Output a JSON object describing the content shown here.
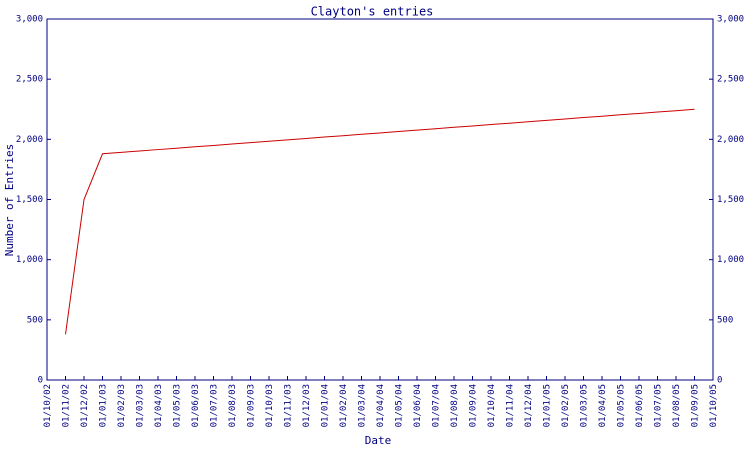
{
  "chart_data": {
    "type": "line",
    "title": "Clayton's entries",
    "x_label": "Date",
    "y_label": "Number of Entries",
    "categories": [
      "01/10/02",
      "01/11/02",
      "01/12/02",
      "01/01/03",
      "01/02/03",
      "01/03/03",
      "01/04/03",
      "01/05/03",
      "01/06/03",
      "01/07/03",
      "01/08/03",
      "01/09/03",
      "01/10/03",
      "01/11/03",
      "01/12/03",
      "01/01/04",
      "01/02/04",
      "01/03/04",
      "01/04/04",
      "01/05/04",
      "01/06/04",
      "01/07/04",
      "01/08/04",
      "01/09/04",
      "01/10/04",
      "01/11/04",
      "01/12/04",
      "01/01/05",
      "01/02/05",
      "01/03/05",
      "01/04/05",
      "01/05/05",
      "01/06/05",
      "01/07/05",
      "01/08/05",
      "01/09/05",
      "01/10/05"
    ],
    "series": [
      {
        "name": "Clayton's entries",
        "color": "#cc0000",
        "values": [
          null,
          380,
          1500,
          1880,
          1892,
          1903,
          1915,
          1926,
          1938,
          1949,
          1961,
          1973,
          1984,
          1996,
          2007,
          2019,
          2030,
          2042,
          2053,
          2065,
          2077,
          2088,
          2100,
          2111,
          2123,
          2134,
          2146,
          2158,
          2169,
          2181,
          2192,
          2204,
          2215,
          2227,
          2238,
          2250,
          null
        ]
      }
    ],
    "ylim": [
      0,
      3000
    ],
    "yticks": [
      0,
      500,
      {
        "value": 1000,
        "label": "1,000"
      },
      {
        "value": 1500,
        "label": "1,500"
      },
      {
        "value": 2000,
        "label": "2,000"
      },
      {
        "value": 2500,
        "label": "2,500"
      },
      {
        "value": 3000,
        "label": "3,000"
      }
    ],
    "y2lim": [
      0,
      3000
    ],
    "y2ticks": [
      0,
      500,
      {
        "value": 1000,
        "label": "1,000"
      },
      {
        "value": 1500,
        "label": "1,500"
      },
      {
        "value": 2000,
        "label": "2,000"
      },
      {
        "value": 2500,
        "label": "2,500"
      },
      {
        "value": 3000,
        "label": "3,000"
      }
    ],
    "grid": false
  }
}
